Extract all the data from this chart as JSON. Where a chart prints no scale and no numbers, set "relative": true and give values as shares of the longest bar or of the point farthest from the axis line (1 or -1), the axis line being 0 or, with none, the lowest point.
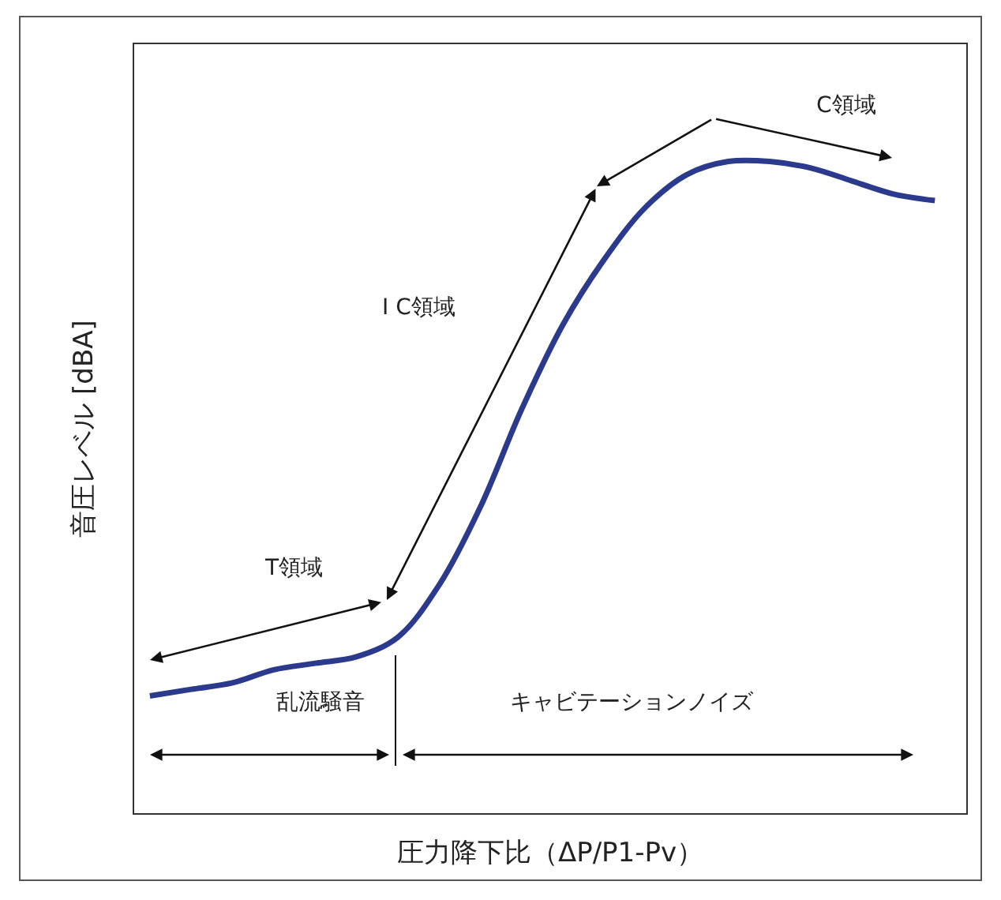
{
  "chart_data": {
    "type": "line",
    "relative": true,
    "xlabel": "圧力降下比（ΔP/P1-Pv）",
    "ylabel": "音圧レベル [dBA]",
    "categories": [
      null,
      null,
      null,
      null,
      null,
      null,
      null,
      null,
      null,
      null,
      null,
      null,
      null,
      null,
      null,
      null,
      null,
      null,
      null,
      null
    ],
    "series": [
      {
        "color": "#2b3a8c",
        "values": [
          0.18,
          0.19,
          0.2,
          0.22,
          0.23,
          0.24,
          0.27,
          0.35,
          0.47,
          0.62,
          0.75,
          0.85,
          0.93,
          0.98,
          1.0,
          1.0,
          0.99,
          0.97,
          0.95,
          0.94
        ]
      }
    ],
    "annotations": [
      "C領域",
      "I C領域",
      "T領域",
      "乱流騒音",
      "キャビテーションノイズ"
    ],
    "marker": "none",
    "line_style": "solid"
  }
}
